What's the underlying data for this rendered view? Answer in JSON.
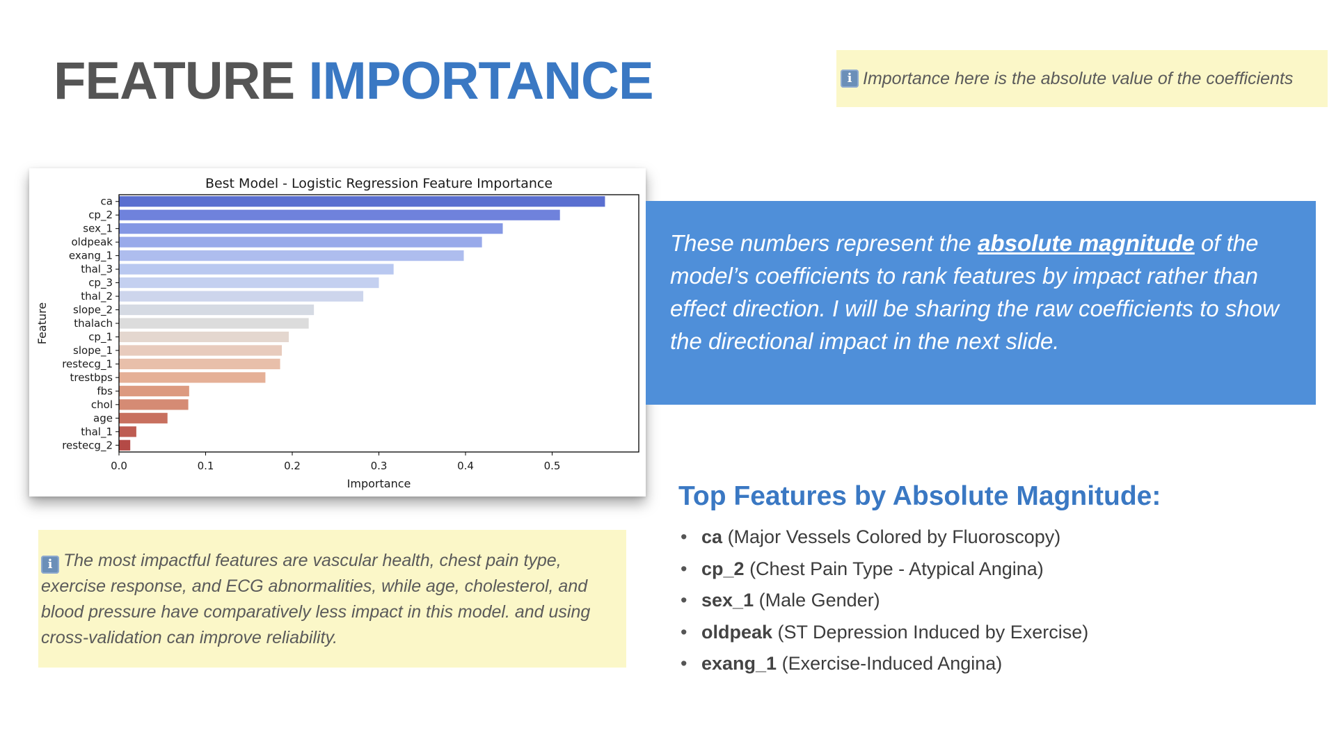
{
  "slide": {
    "title_part1": "FEATURE",
    "title_part2": "IMPORTANCE",
    "note_top": "Importance here is the absolute value of the coefficients",
    "info_icon": "info-icon",
    "note_bottom": "The most impactful features are vascular health, chest pain type, exercise response, and ECG abnormalities, while age, cholesterol, and blood pressure have comparatively less impact in this model. and using cross-validation can improve reliability.",
    "blue_box": {
      "text_before": "These numbers represent the ",
      "emphasis": "absolute magnitude",
      "text_after": " of the model’s coefficients to rank features by impact rather than effect direction. I will be sharing the raw coefficients to show the directional impact in the next slide."
    },
    "top_features_heading": "Top Features by Absolute Magnitude:",
    "top_features": [
      {
        "name": "ca",
        "desc": "(Major Vessels Colored by Fluoroscopy)"
      },
      {
        "name": "cp_2",
        "desc": "(Chest Pain Type - Atypical Angina)"
      },
      {
        "name": "sex_1",
        "desc": "(Male Gender)"
      },
      {
        "name": "oldpeak",
        "desc": "(ST Depression Induced by Exercise)"
      },
      {
        "name": "exang_1",
        "desc": "(Exercise-Induced Angina)"
      }
    ],
    "bullet": "•"
  },
  "chart_data": {
    "type": "bar",
    "orientation": "horizontal",
    "title": "Best Model - Logistic Regression Feature Importance",
    "xlabel": "Importance",
    "ylabel": "Feature",
    "categories": [
      "ca",
      "cp_2",
      "sex_1",
      "oldpeak",
      "exang_1",
      "thal_3",
      "cp_3",
      "thal_2",
      "slope_2",
      "thalach",
      "cp_1",
      "slope_1",
      "restecg_1",
      "trestbps",
      "fbs",
      "chol",
      "age",
      "thal_1",
      "restecg_2"
    ],
    "values": [
      0.561,
      0.509,
      0.443,
      0.419,
      0.398,
      0.317,
      0.3,
      0.282,
      0.225,
      0.219,
      0.196,
      0.188,
      0.186,
      0.169,
      0.081,
      0.08,
      0.056,
      0.02,
      0.013
    ],
    "bar_colors": [
      "#5a6fd0",
      "#6f82dc",
      "#8497e4",
      "#99aaea",
      "#aebdee",
      "#b9c8f0",
      "#c4d0f0",
      "#cdd5ec",
      "#d5dae3",
      "#dcdcdc",
      "#e4d7cf",
      "#e8cbbd",
      "#e8bfaa",
      "#e5b097",
      "#dc9a80",
      "#d58b74",
      "#c8705f",
      "#be5c52",
      "#b44a46"
    ],
    "xlim": [
      0,
      0.6
    ],
    "xticks": [
      0.0,
      0.1,
      0.2,
      0.3,
      0.4,
      0.5
    ],
    "xtick_labels": [
      "0.0",
      "0.1",
      "0.2",
      "0.3",
      "0.4",
      "0.5"
    ],
    "grid": false
  }
}
